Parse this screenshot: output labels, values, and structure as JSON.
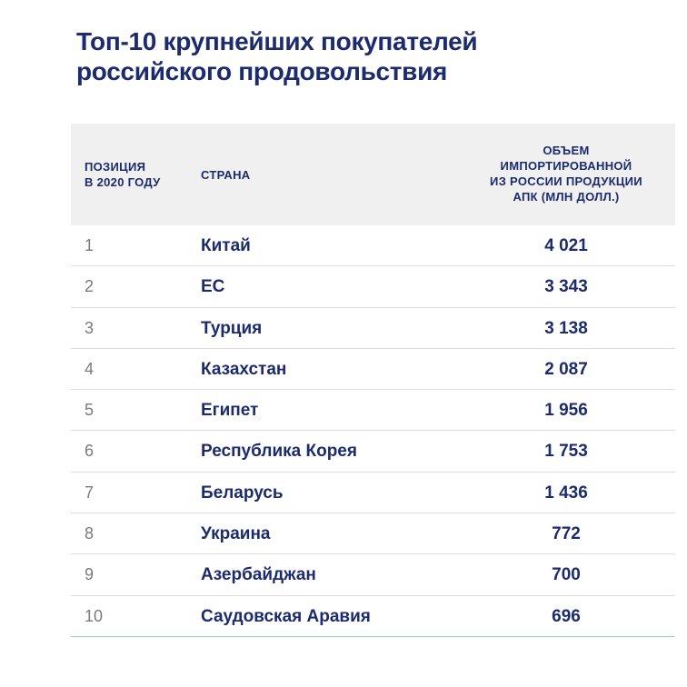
{
  "title": {
    "line1": "Топ-10 крупнейших покупателей",
    "line2": "российского продовольствия"
  },
  "table": {
    "headers": {
      "position": "ПОЗИЦИЯ\nВ 2020 ГОДУ",
      "country": "СТРАНА",
      "volume": "ОБЪЕМ\nИМПОРТИРОВАННОЙ\nИЗ РОССИИ ПРОДУКЦИИ\nАПК (МЛН ДОЛЛ.)"
    },
    "rows": [
      {
        "position": "1",
        "country": "Китай",
        "value": "4 021"
      },
      {
        "position": "2",
        "country": "ЕС",
        "value": "3 343"
      },
      {
        "position": "3",
        "country": "Турция",
        "value": "3 138"
      },
      {
        "position": "4",
        "country": "Казахстан",
        "value": "2 087"
      },
      {
        "position": "5",
        "country": "Египет",
        "value": "1 956"
      },
      {
        "position": "6",
        "country": "Республика Корея",
        "value": "1 753"
      },
      {
        "position": "7",
        "country": "Беларусь",
        "value": "1 436"
      },
      {
        "position": "8",
        "country": "Украина",
        "value": "772"
      },
      {
        "position": "9",
        "country": "Азербайджан",
        "value": "700"
      },
      {
        "position": "10",
        "country": "Саудовская Аравия",
        "value": "696"
      }
    ]
  }
}
